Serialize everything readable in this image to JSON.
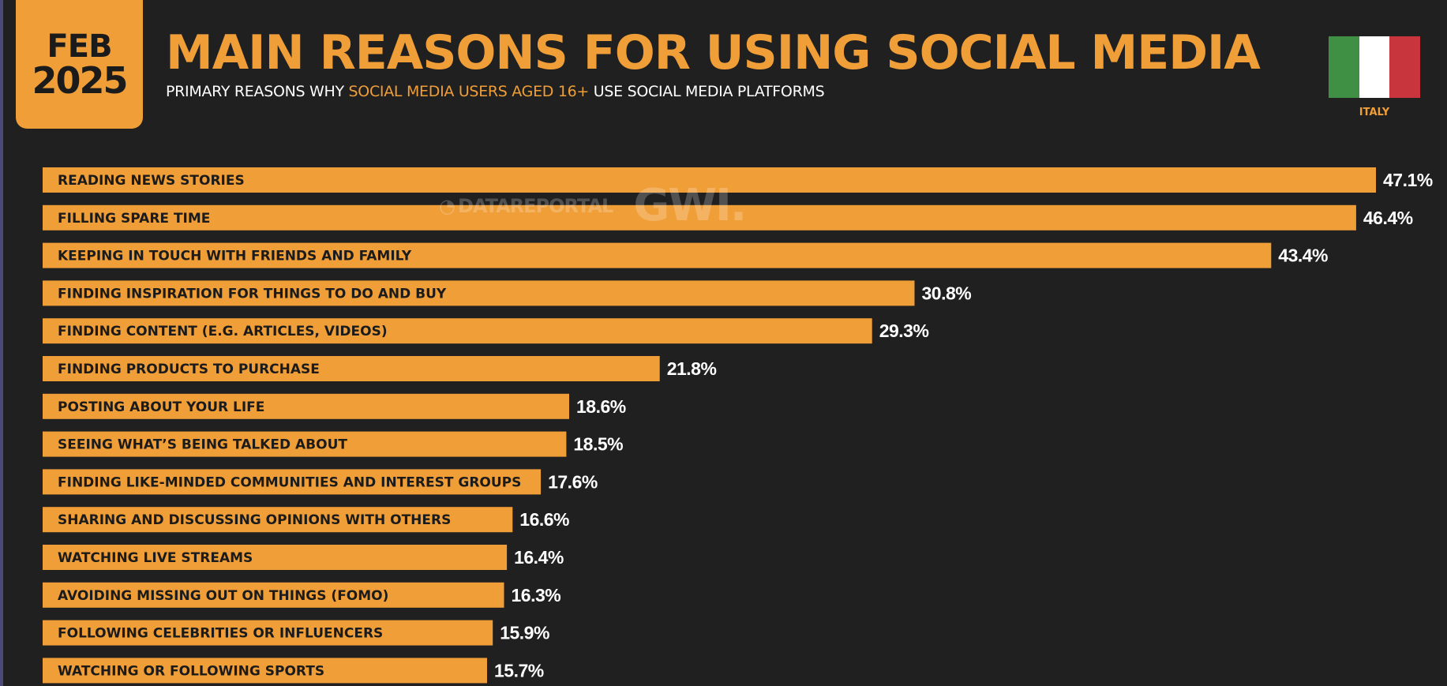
{
  "header": {
    "month": "FEB",
    "year": "2025",
    "title": "MAIN REASONS FOR USING SOCIAL MEDIA",
    "subtitle_pre": "PRIMARY REASONS WHY ",
    "subtitle_highlight": "SOCIAL MEDIA USERS AGED 16+",
    "subtitle_post": " USE SOCIAL MEDIA PLATFORMS"
  },
  "country": {
    "name": "ITALY",
    "flag_colors": [
      "#3f8f45",
      "#ffffff",
      "#c8353d"
    ]
  },
  "watermark": {
    "brand1": "DATAREPORTAL",
    "brand2": "GWI."
  },
  "colors": {
    "accent": "#f09e38",
    "background": "#202020"
  },
  "chart_data": {
    "type": "bar",
    "orientation": "horizontal",
    "title": "MAIN REASONS FOR USING SOCIAL MEDIA",
    "unit": "%",
    "xlim": [
      0,
      47.1
    ],
    "categories": [
      "READING NEWS STORIES",
      "FILLING SPARE TIME",
      "KEEPING IN TOUCH WITH FRIENDS AND FAMILY",
      "FINDING INSPIRATION FOR THINGS TO DO AND BUY",
      "FINDING CONTENT (E.G. ARTICLES, VIDEOS)",
      "FINDING PRODUCTS TO PURCHASE",
      "POSTING ABOUT YOUR LIFE",
      "SEEING WHAT’S BEING TALKED ABOUT",
      "FINDING LIKE-MINDED COMMUNITIES AND INTEREST GROUPS",
      "SHARING AND DISCUSSING OPINIONS WITH OTHERS",
      "WATCHING LIVE STREAMS",
      "AVOIDING MISSING OUT ON THINGS (FOMO)",
      "FOLLOWING CELEBRITIES OR INFLUENCERS",
      "WATCHING OR FOLLOWING SPORTS"
    ],
    "values": [
      47.1,
      46.4,
      43.4,
      30.8,
      29.3,
      21.8,
      18.6,
      18.5,
      17.6,
      16.6,
      16.4,
      16.3,
      15.9,
      15.7
    ],
    "value_labels": [
      "47.1%",
      "46.4%",
      "43.4%",
      "30.8%",
      "29.3%",
      "21.8%",
      "18.6%",
      "18.5%",
      "17.6%",
      "16.6%",
      "16.4%",
      "16.3%",
      "15.9%",
      "15.7%"
    ]
  }
}
